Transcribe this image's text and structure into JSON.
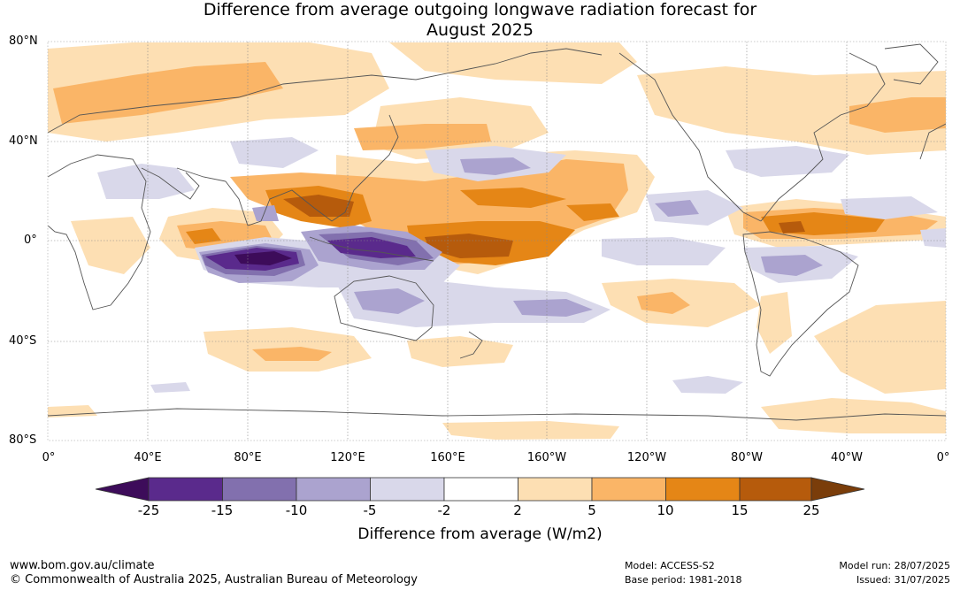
{
  "title": {
    "line1": "Difference from average outgoing longwave radiation forecast for",
    "line2": "August 2025"
  },
  "latitude_labels": [
    "80°N",
    "40°N",
    "0°",
    "40°S",
    "80°S"
  ],
  "longitude_labels": [
    "0°",
    "40°E",
    "80°E",
    "120°E",
    "160°E",
    "160°W",
    "120°W",
    "80°W",
    "40°W",
    "0°"
  ],
  "colorbar": {
    "title": "Difference from average (W/m2)",
    "ticks": [
      "-25",
      "-15",
      "-10",
      "-5",
      "-2",
      "2",
      "5",
      "10",
      "15",
      "25"
    ],
    "colors": [
      "#3d0c5a",
      "#5a2a8c",
      "#8270ae",
      "#aba3cf",
      "#d9d8ea",
      "#ffffff",
      "#fddfb3",
      "#fab567",
      "#e58616",
      "#b65b0c",
      "#7a3d0a"
    ]
  },
  "footer": {
    "website": "www.bom.gov.au/climate",
    "copyright": "© Commonwealth of Australia 2025, Australian Bureau of Meteorology",
    "model": "Model: ACCESS-S2",
    "base_period": "Base period: 1981-2018",
    "model_run": "Model run: 28/07/2025",
    "issued": "Issued: 31/07/2025"
  },
  "anomaly_fields": [
    {
      "category": "+2 to +5",
      "color": "#fddfb3"
    },
    {
      "category": "+5 to +10",
      "color": "#fab567"
    },
    {
      "category": "+10 to +15",
      "color": "#e58616"
    },
    {
      "category": "+15 to +25",
      "color": "#b65b0c"
    },
    {
      "category": "-2 to -5",
      "color": "#d9d8ea"
    },
    {
      "category": "-5 to -10",
      "color": "#aba3cf"
    },
    {
      "category": "-10 to -15",
      "color": "#8270ae"
    },
    {
      "category": "-15 to -25",
      "color": "#5a2a8c"
    },
    {
      "category": "< -25",
      "color": "#3d0c5a"
    }
  ]
}
